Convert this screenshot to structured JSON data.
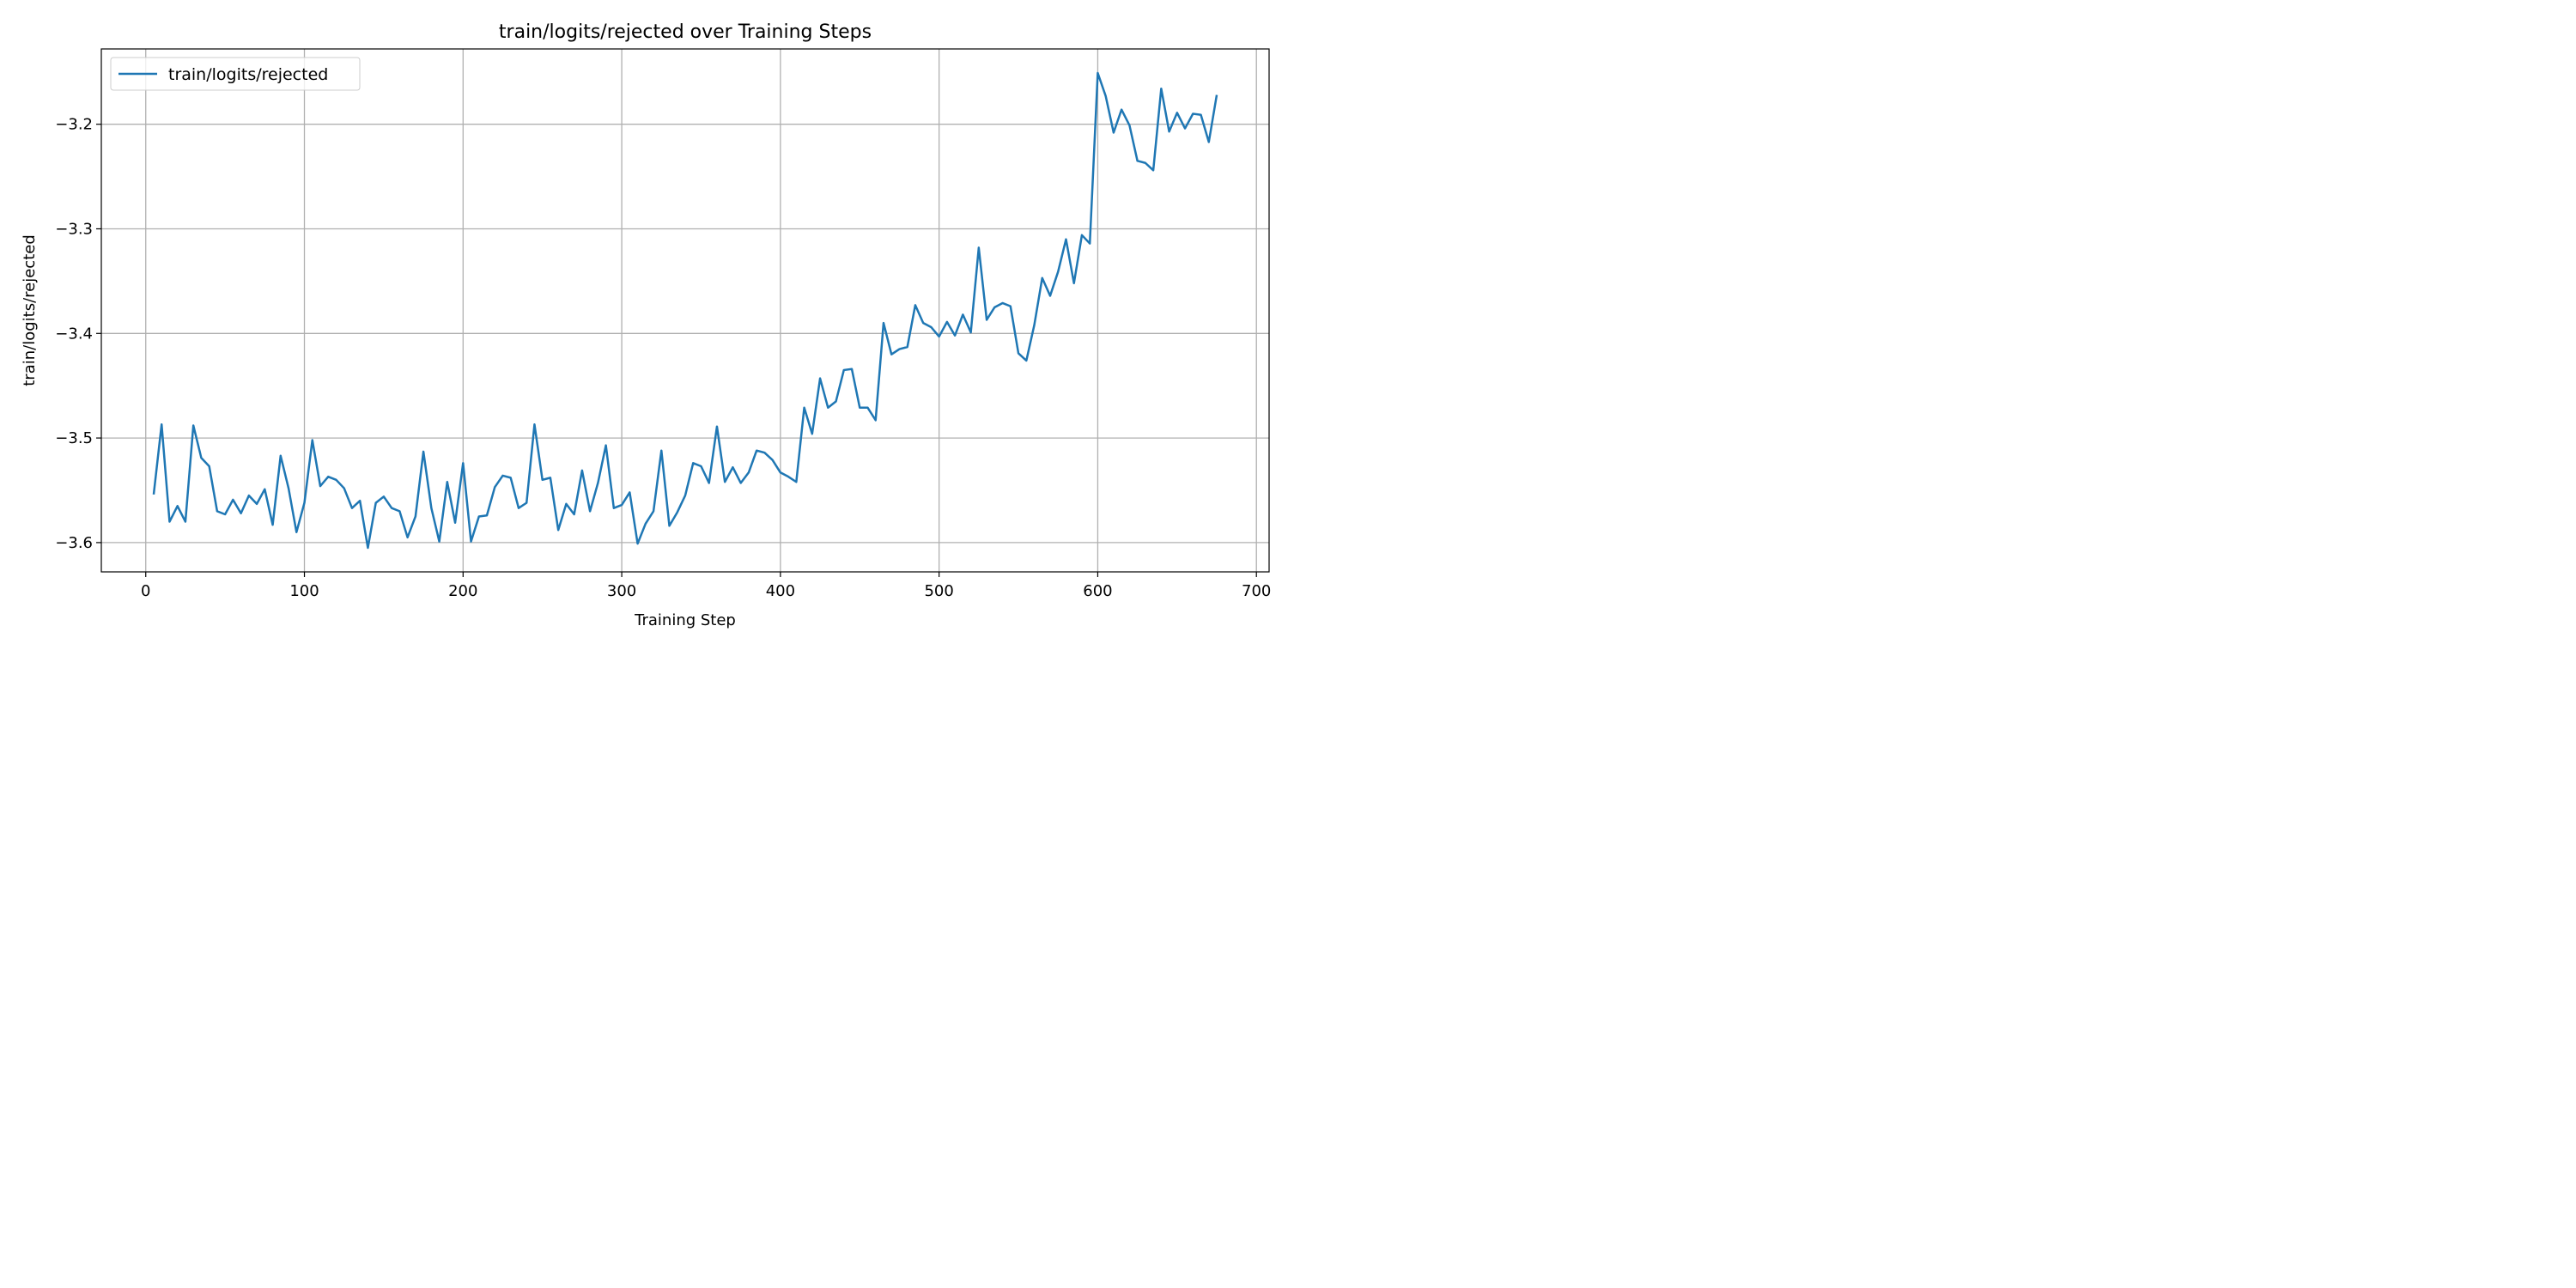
{
  "chart_data": {
    "type": "line",
    "title": "train/logits/rejected over Training Steps",
    "xlabel": "Training Step",
    "ylabel": "train/logits/rejected",
    "xlim": [
      -28,
      708
    ],
    "ylim": [
      -3.628,
      -3.128
    ],
    "xticks": [
      0,
      100,
      200,
      300,
      400,
      500,
      600,
      700
    ],
    "yticks": [
      -3.6,
      -3.5,
      -3.4,
      -3.3,
      -3.2
    ],
    "grid": true,
    "legend": {
      "position": "top-left",
      "entries": [
        "train/logits/rejected"
      ]
    },
    "series": [
      {
        "name": "train/logits/rejected",
        "color": "#1f77b4",
        "x": [
          5,
          10,
          15,
          20,
          25,
          30,
          35,
          40,
          45,
          50,
          55,
          60,
          65,
          70,
          75,
          80,
          85,
          90,
          95,
          100,
          105,
          110,
          115,
          120,
          125,
          130,
          135,
          140,
          145,
          150,
          155,
          160,
          165,
          170,
          175,
          180,
          185,
          190,
          195,
          200,
          205,
          210,
          215,
          220,
          225,
          230,
          235,
          240,
          245,
          250,
          255,
          260,
          265,
          270,
          275,
          280,
          285,
          290,
          295,
          300,
          305,
          310,
          315,
          320,
          325,
          330,
          335,
          340,
          345,
          350,
          355,
          360,
          365,
          370,
          375,
          380,
          385,
          390,
          395,
          400,
          405,
          410,
          415,
          420,
          425,
          430,
          435,
          440,
          445,
          450,
          455,
          460,
          465,
          470,
          475,
          480,
          485,
          490,
          495,
          500,
          505,
          510,
          515,
          520,
          525,
          530,
          535,
          540,
          545,
          550,
          555,
          560,
          565,
          570,
          575,
          580,
          585,
          590,
          595,
          600,
          605,
          610,
          615,
          620,
          625,
          630,
          635,
          640,
          645,
          650,
          655,
          660,
          665,
          670,
          675
        ],
        "y": [
          -3.554,
          -3.487,
          -3.58,
          -3.565,
          -3.58,
          -3.488,
          -3.519,
          -3.527,
          -3.57,
          -3.573,
          -3.559,
          -3.572,
          -3.555,
          -3.563,
          -3.549,
          -3.583,
          -3.517,
          -3.548,
          -3.59,
          -3.562,
          -3.502,
          -3.546,
          -3.537,
          -3.54,
          -3.548,
          -3.567,
          -3.56,
          -3.605,
          -3.562,
          -3.556,
          -3.567,
          -3.57,
          -3.595,
          -3.575,
          -3.513,
          -3.567,
          -3.599,
          -3.542,
          -3.581,
          -3.524,
          -3.599,
          -3.575,
          -3.574,
          -3.547,
          -3.536,
          -3.538,
          -3.567,
          -3.562,
          -3.487,
          -3.54,
          -3.538,
          -3.588,
          -3.563,
          -3.573,
          -3.531,
          -3.57,
          -3.543,
          -3.507,
          -3.567,
          -3.564,
          -3.552,
          -3.601,
          -3.582,
          -3.57,
          -3.512,
          -3.584,
          -3.571,
          -3.555,
          -3.524,
          -3.527,
          -3.543,
          -3.489,
          -3.542,
          -3.528,
          -3.543,
          -3.533,
          -3.512,
          -3.514,
          -3.521,
          -3.533,
          -3.537,
          -3.542,
          -3.471,
          -3.496,
          -3.443,
          -3.471,
          -3.465,
          -3.435,
          -3.434,
          -3.471,
          -3.471,
          -3.483,
          -3.39,
          -3.42,
          -3.415,
          -3.413,
          -3.373,
          -3.39,
          -3.394,
          -3.403,
          -3.389,
          -3.402,
          -3.382,
          -3.399,
          -3.318,
          -3.387,
          -3.375,
          -3.371,
          -3.374,
          -3.419,
          -3.426,
          -3.392,
          -3.347,
          -3.364,
          -3.341,
          -3.31,
          -3.352,
          -3.306,
          -3.314,
          -3.151,
          -3.173,
          -3.208,
          -3.186,
          -3.201,
          -3.235,
          -3.237,
          -3.244,
          -3.166,
          -3.207,
          -3.189,
          -3.204,
          -3.19,
          -3.191,
          -3.217,
          -3.172
        ]
      }
    ]
  }
}
